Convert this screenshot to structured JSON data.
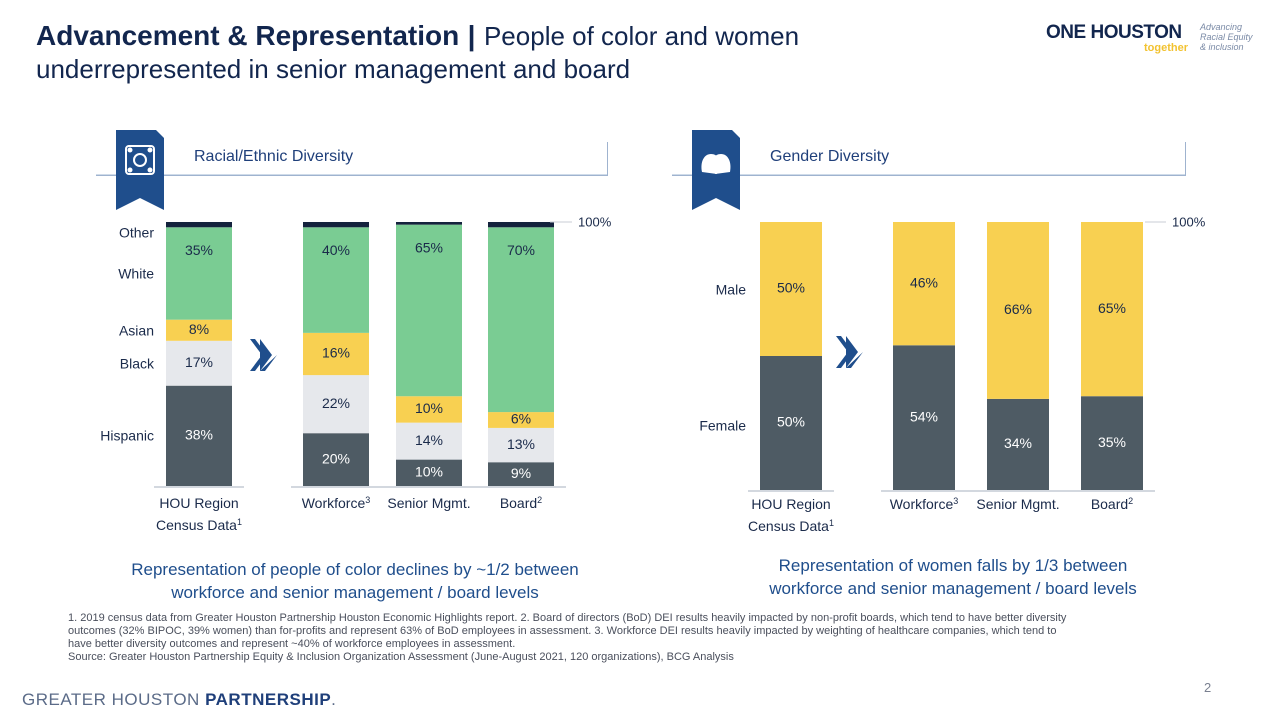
{
  "title": {
    "main": "Advancement & Representation",
    "separator": "|",
    "sub_line1": "People of color and women",
    "sub_line2": "underrepresented in senior management and board"
  },
  "logo": {
    "one": "ONE",
    "houston": "HOUSTON",
    "together": "together",
    "tag_line1": "Advancing",
    "tag_line2": "Racial Equity",
    "tag_line3": "& inclusion"
  },
  "colors": {
    "hispanic": "#4e5b64",
    "black": "#e6e8ec",
    "asian": "#f8d051",
    "white": "#7acc93",
    "other": "#14223d",
    "female": "#4e5b64",
    "male": "#f8d051",
    "arrow": "#1f4e8c",
    "accent": "#1f4e8c"
  },
  "panels": {
    "racial": {
      "label": "Racial/Ethnic Diversity",
      "icon": "diversity-people-icon"
    },
    "gender": {
      "label": "Gender Diversity",
      "icon": "gender-heads-icon"
    }
  },
  "chart_data": [
    {
      "type": "bar",
      "stacked": true,
      "title": "Racial/Ethnic Diversity",
      "categories": [
        [
          "HOU Region",
          "Census Data",
          "1"
        ],
        [
          "Workforce",
          "",
          "3"
        ],
        [
          "Senior Mgmt.",
          "",
          ""
        ],
        [
          "Board",
          "",
          "2"
        ]
      ],
      "series": [
        {
          "name": "Hispanic",
          "key": "hispanic",
          "values": [
            38,
            20,
            10,
            9
          ],
          "labels": [
            "38%",
            "20%",
            "10%",
            "9%"
          ]
        },
        {
          "name": "Black",
          "key": "black",
          "values": [
            17,
            22,
            14,
            13
          ],
          "labels": [
            "17%",
            "22%",
            "14%",
            "13%"
          ]
        },
        {
          "name": "Asian",
          "key": "asian",
          "values": [
            8,
            16,
            10,
            6
          ],
          "labels": [
            "8%",
            "16%",
            "10%",
            "6%"
          ]
        },
        {
          "name": "White",
          "key": "white",
          "values": [
            35,
            40,
            65,
            70
          ],
          "labels": [
            "35%",
            "40%",
            "65%",
            "70%"
          ]
        },
        {
          "name": "Other",
          "key": "other",
          "values": [
            2,
            2,
            1,
            2
          ],
          "labels": [
            "",
            "",
            "",
            ""
          ]
        }
      ],
      "ylim": [
        0,
        100
      ],
      "top_label": "100%",
      "legend_labels": [
        "Hispanic",
        "Black",
        "Asian",
        "White",
        "Other"
      ]
    },
    {
      "type": "bar",
      "stacked": true,
      "title": "Gender Diversity",
      "categories": [
        [
          "HOU Region",
          "Census Data",
          "1"
        ],
        [
          "Workforce",
          "",
          "3"
        ],
        [
          "Senior Mgmt.",
          "",
          ""
        ],
        [
          "Board",
          "",
          "2"
        ]
      ],
      "series": [
        {
          "name": "Female",
          "key": "female",
          "values": [
            50,
            54,
            34,
            35
          ],
          "labels": [
            "50%",
            "54%",
            "34%",
            "35%"
          ]
        },
        {
          "name": "Male",
          "key": "male",
          "values": [
            50,
            46,
            66,
            65
          ],
          "labels": [
            "50%",
            "46%",
            "66%",
            "65%"
          ]
        }
      ],
      "ylim": [
        0,
        100
      ],
      "top_label": "100%",
      "legend_labels": [
        "Female",
        "Male"
      ]
    }
  ],
  "captions": {
    "racial_line1": "Representation of people of color declines by ~1/2 between",
    "racial_line2": "workforce and senior management / board levels",
    "gender_line1": "Representation of women falls by 1/3 between",
    "gender_line2": "workforce and senior management / board levels"
  },
  "footnotes": {
    "line1": "1. 2019 census data from Greater Houston Partnership Houston Economic Highlights report. 2. Board of directors (BoD) DEI results heavily impacted by non-profit boards, which tend to have better diversity",
    "line2": "outcomes (32% BIPOC, 39% women) than for-profits and represent 63% of BoD employees in assessment. 3. Workforce DEI results heavily impacted by weighting of healthcare companies, which tend to",
    "line3": "have better diversity outcomes and represent ~40% of workforce employees in assessment.",
    "source": "Source: Greater Houston Partnership Equity & Inclusion Organization Assessment (June-August 2021, 120 organizations), BCG Analysis"
  },
  "footer": {
    "brand_a": "GREATER HOUSTON",
    "brand_b": "PARTNERSHIP",
    "brand_c": ".",
    "page_number": "2"
  }
}
